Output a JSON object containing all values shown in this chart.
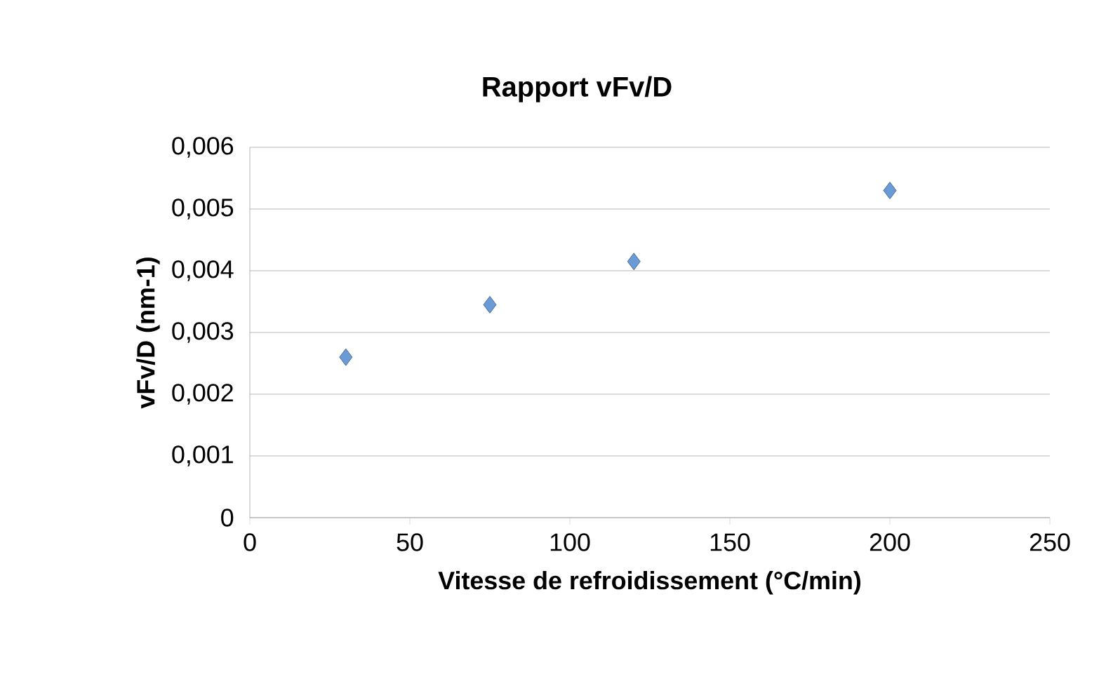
{
  "chart_data": {
    "type": "scatter",
    "title": "Rapport vFv/D",
    "xlabel": "Vitesse de refroidissement (°C/min)",
    "ylabel": "vFv/D (nm-1)",
    "x": [
      30,
      75,
      120,
      200
    ],
    "values": [
      0.0026,
      0.00345,
      0.00415,
      0.0053
    ],
    "color": "#6a9bd6",
    "marker": "diamond",
    "grid": "y",
    "xlim": [
      0,
      250
    ],
    "xticks": [
      0,
      50,
      100,
      150,
      200,
      250
    ],
    "ylim": [
      0,
      0.006
    ],
    "yticks": [
      {
        "value": 0,
        "label": "0"
      },
      {
        "value": 0.001,
        "label": "0,001"
      },
      {
        "value": 0.002,
        "label": "0,002"
      },
      {
        "value": 0.003,
        "label": "0,003"
      },
      {
        "value": 0.004,
        "label": "0,004"
      },
      {
        "value": 0.005,
        "label": "0,005"
      },
      {
        "value": 0.006,
        "label": "0,006"
      }
    ]
  }
}
